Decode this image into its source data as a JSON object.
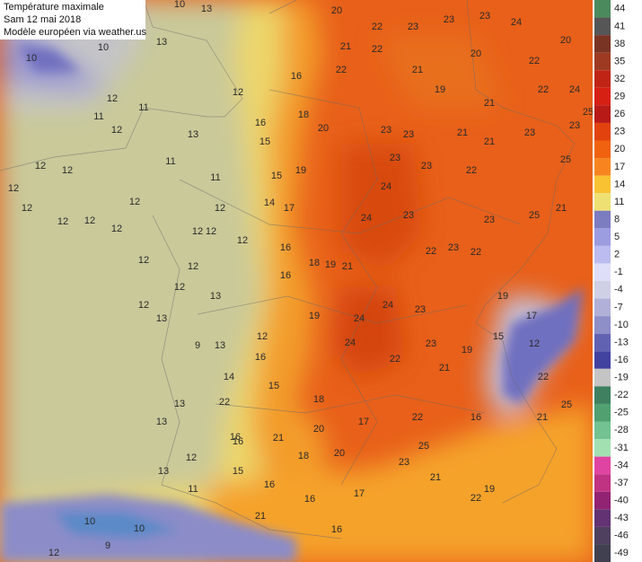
{
  "header": {
    "title": "Température maximale",
    "date": "Sam 12 mai 2018",
    "source": "Modèle européen via weather.us"
  },
  "scale": {
    "labels": [
      44,
      41,
      38,
      35,
      32,
      29,
      26,
      23,
      20,
      17,
      14,
      11,
      8,
      5,
      2,
      -1,
      -4,
      -7,
      -10,
      -13,
      -16,
      -19,
      -22,
      -25,
      -28,
      -31,
      -34,
      -37,
      -40,
      -43,
      -46,
      -49
    ],
    "colors": [
      "#4b8a5c",
      "#565656",
      "#7a3424",
      "#9e3a22",
      "#c02414",
      "#d62014",
      "#b81a18",
      "#e2420e",
      "#f0620f",
      "#f8841f",
      "#f8c233",
      "#eee072",
      "#7c7cc0",
      "#9c9ce0",
      "#bcbcf0",
      "#dedef8",
      "#cfcfe6",
      "#b0b0d8",
      "#8e8ec8",
      "#6262b2",
      "#4242a0",
      "#c4c4c4",
      "#3e8060",
      "#50a070",
      "#72c292",
      "#a2e0b2",
      "#e044a2",
      "#c03282",
      "#922272",
      "#623272",
      "#504060",
      "#404050"
    ]
  },
  "map": {
    "labels": [
      20,
      22,
      23,
      23,
      23,
      24,
      20,
      21,
      22,
      21,
      20,
      22,
      19,
      21,
      22,
      24,
      25,
      23,
      23,
      23,
      23,
      21,
      21,
      25,
      23,
      23,
      22,
      24,
      24,
      23,
      23,
      25,
      21,
      22,
      23,
      22,
      22,
      16,
      12,
      16,
      13,
      15,
      18,
      20,
      19,
      15,
      14,
      17,
      16,
      18,
      19,
      21,
      16,
      19,
      24,
      24,
      23,
      24,
      22,
      23,
      19,
      15,
      12,
      17,
      19,
      22,
      25,
      21,
      16,
      21,
      22,
      17,
      18,
      20,
      18,
      20,
      17,
      25,
      23,
      21,
      22,
      19,
      21,
      16,
      15,
      16,
      16,
      21,
      16,
      22,
      14,
      13,
      13,
      13,
      12,
      11,
      10,
      10,
      9,
      12,
      9,
      13,
      12,
      13,
      12,
      13,
      12,
      12,
      12,
      12,
      12,
      12,
      12,
      12,
      11,
      12,
      12,
      12,
      12,
      12,
      12,
      12,
      11,
      12,
      11,
      12,
      11,
      10,
      13,
      13,
      10,
      10,
      16,
      16,
      15,
      16
    ]
  }
}
